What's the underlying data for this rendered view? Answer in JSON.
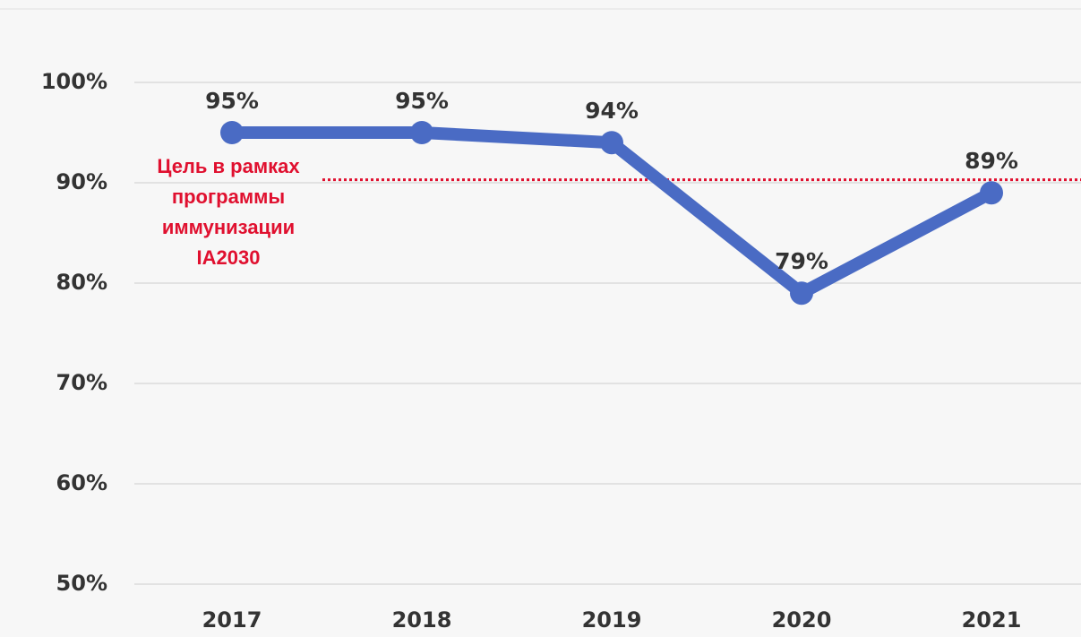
{
  "chart_data": {
    "type": "line",
    "categories": [
      "2017",
      "2018",
      "2019",
      "2020",
      "2021"
    ],
    "values": [
      95,
      95,
      94,
      79,
      89
    ],
    "value_labels": [
      "95%",
      "95%",
      "94%",
      "79%",
      "89%"
    ],
    "color": "#4a6bc4",
    "ylim": [
      50,
      100
    ],
    "yticks": [
      {
        "value": 50,
        "label": "50%"
      },
      {
        "value": 60,
        "label": "60%"
      },
      {
        "value": 70,
        "label": "70%"
      },
      {
        "value": 80,
        "label": "80%"
      },
      {
        "value": 90,
        "label": "90%"
      },
      {
        "value": 100,
        "label": "100%"
      }
    ],
    "grid": true,
    "target": {
      "value": 90.3,
      "label": [
        "Цель в рамках",
        "программы",
        "иммунизации",
        "IA2030"
      ],
      "color": "#e0102f"
    }
  }
}
